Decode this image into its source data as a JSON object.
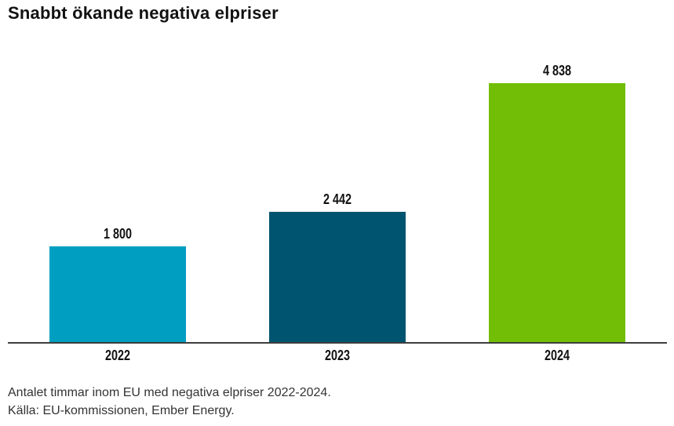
{
  "title": "Snabbt ökande negativa elpriser",
  "caption": {
    "line1": "Antalet timmar inom EU med negativa elpriser 2022-2024.",
    "line2": "Källa: EU-kommissionen, Ember Energy."
  },
  "chart_data": {
    "type": "bar",
    "title": "Snabbt ökande negativa elpriser",
    "categories": [
      "2022",
      "2023",
      "2024"
    ],
    "values": [
      1800,
      2442,
      4838
    ],
    "value_labels": [
      "1 800",
      "2 442",
      "4 838"
    ],
    "series_name": "Antalet timmar inom EU med negativa elpriser",
    "xlabel": "",
    "ylabel": "",
    "ylim": [
      0,
      4838
    ],
    "grid": false,
    "legend": false,
    "bar_colors": [
      "#009FC1",
      "#00546F",
      "#72BE06"
    ],
    "axis_line_color": "#3d3d3d",
    "label_color": "#111111",
    "annotations": [
      "Antalet timmar inom EU med negativa elpriser 2022-2024.",
      "Källa: EU-kommissionen, Ember Energy."
    ]
  }
}
